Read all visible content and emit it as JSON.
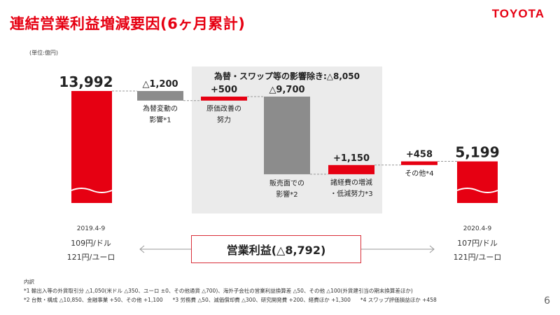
{
  "header": {
    "title": "連結営業利益増減要因(6ヶ月累計)",
    "logo_text": "TOYOTA"
  },
  "unit_label": "(単位:億円)",
  "exclusion_box": {
    "label": "為替・スワップ等の影響除き:△8,050"
  },
  "chart_data": {
    "type": "waterfall",
    "title": "",
    "unit": "億円",
    "steps": [
      {
        "name": "2019.4-9",
        "type": "total",
        "value": 13992,
        "value_label": "13,992",
        "label": "",
        "color": "#e60012"
      },
      {
        "name": "為替変動の影響",
        "type": "delta",
        "value": -1200,
        "value_label": "△1,200",
        "label_lines": [
          "為替変動の",
          "影響*1"
        ],
        "color": "#8c8c8c"
      },
      {
        "name": "原価改善の努力",
        "type": "delta",
        "value": 500,
        "value_label": "+500",
        "label_lines": [
          "原価改善の",
          "努力"
        ],
        "color": "#e60012"
      },
      {
        "name": "販売面での影響",
        "type": "delta",
        "value": -9700,
        "value_label": "△9,700",
        "label_lines": [
          "販売面での",
          "影響*2"
        ],
        "color": "#8c8c8c"
      },
      {
        "name": "諸経費の増減・低減努力",
        "type": "delta",
        "value": 1150,
        "value_label": "+1,150",
        "label_lines": [
          "諸経費の増減",
          "・低減努力*3"
        ],
        "color": "#e60012"
      },
      {
        "name": "その他",
        "type": "delta",
        "value": 458,
        "value_label": "+458",
        "label_lines": [
          "その他*4"
        ],
        "color": "#e60012"
      },
      {
        "name": "2020.4-9",
        "type": "total",
        "value": 5199,
        "value_label": "5,199",
        "label": "",
        "color": "#e60012"
      }
    ]
  },
  "periods": {
    "start": {
      "date": "2019.4-9",
      "usd": "109円/ドル",
      "eur": "121円/ユーロ"
    },
    "end": {
      "date": "2020.4-9",
      "usd": "107円/ドル",
      "eur": "121円/ユーロ"
    }
  },
  "operating_profit": {
    "label": "営業利益(△8,792)"
  },
  "notes": {
    "heading": "内訳",
    "line1": "*1 輸出入等の外貨取引分 △1,050(米ドル △350、ユーロ ±0、その他通貨 △700)、海外子会社の営業利益換算差 △50、その他 △100(外貨建引当の期末換算差ほか)",
    "line2a": "*2 台数・構成 △10,850、金融事業 +50、その他 +1,100",
    "line2b": "*3 労務費 △50、減価償却費 △300、研究開発費 +200、経費ほか +1,300",
    "line2c": "*4 スワップ評価損益ほか +458"
  },
  "page_number": "6",
  "colors": {
    "accent": "#e60012",
    "negative": "#8c8c8c",
    "box_bg": "#ebebeb"
  }
}
